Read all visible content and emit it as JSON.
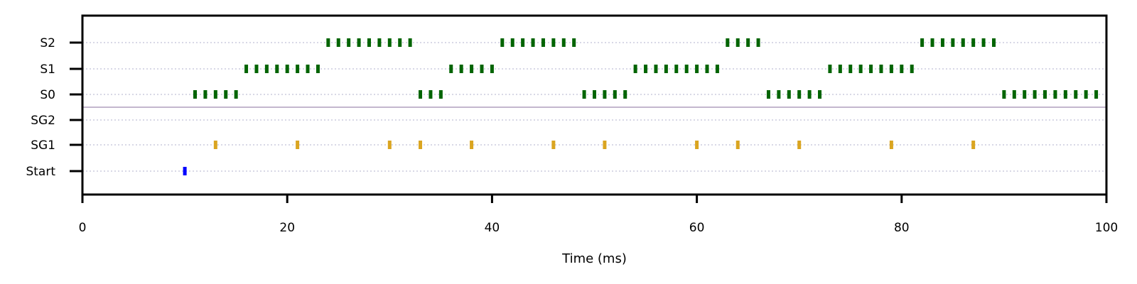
{
  "chart_data": {
    "type": "raster",
    "xlabel": "Time (ms)",
    "xlim": [
      0,
      100
    ],
    "xticks": [
      0,
      20,
      40,
      60,
      80,
      100
    ],
    "grid": "horizontal dotted",
    "rows": [
      "S2",
      "S1",
      "S0",
      "SG2",
      "SG1",
      "Start"
    ],
    "separator_between": [
      "S0",
      "SG2"
    ],
    "colors": {
      "S2": "#006400",
      "S1": "#006400",
      "S0": "#006400",
      "SG2": "#DAA520",
      "SG1": "#DAA520",
      "Start": "#0000FF"
    },
    "series": [
      {
        "name": "S2",
        "x": [
          24,
          25,
          26,
          27,
          28,
          29,
          30,
          31,
          32,
          41,
          42,
          43,
          44,
          45,
          46,
          47,
          48,
          63,
          64,
          65,
          66,
          82,
          83,
          84,
          85,
          86,
          87,
          88,
          89
        ]
      },
      {
        "name": "S1",
        "x": [
          16,
          17,
          18,
          19,
          20,
          21,
          22,
          23,
          36,
          37,
          38,
          39,
          40,
          54,
          55,
          56,
          57,
          58,
          59,
          60,
          61,
          62,
          73,
          74,
          75,
          76,
          77,
          78,
          79,
          80,
          81
        ]
      },
      {
        "name": "S0",
        "x": [
          11,
          12,
          13,
          14,
          15,
          33,
          34,
          35,
          49,
          50,
          51,
          52,
          53,
          67,
          68,
          69,
          70,
          71,
          72,
          90,
          91,
          92,
          93,
          94,
          95,
          96,
          97,
          98,
          99
        ]
      },
      {
        "name": "SG2",
        "x": []
      },
      {
        "name": "SG1",
        "x": [
          13,
          21,
          30,
          33,
          38,
          46,
          51,
          60,
          64,
          70,
          79,
          87
        ]
      },
      {
        "name": "Start",
        "x": [
          10
        ]
      }
    ]
  }
}
